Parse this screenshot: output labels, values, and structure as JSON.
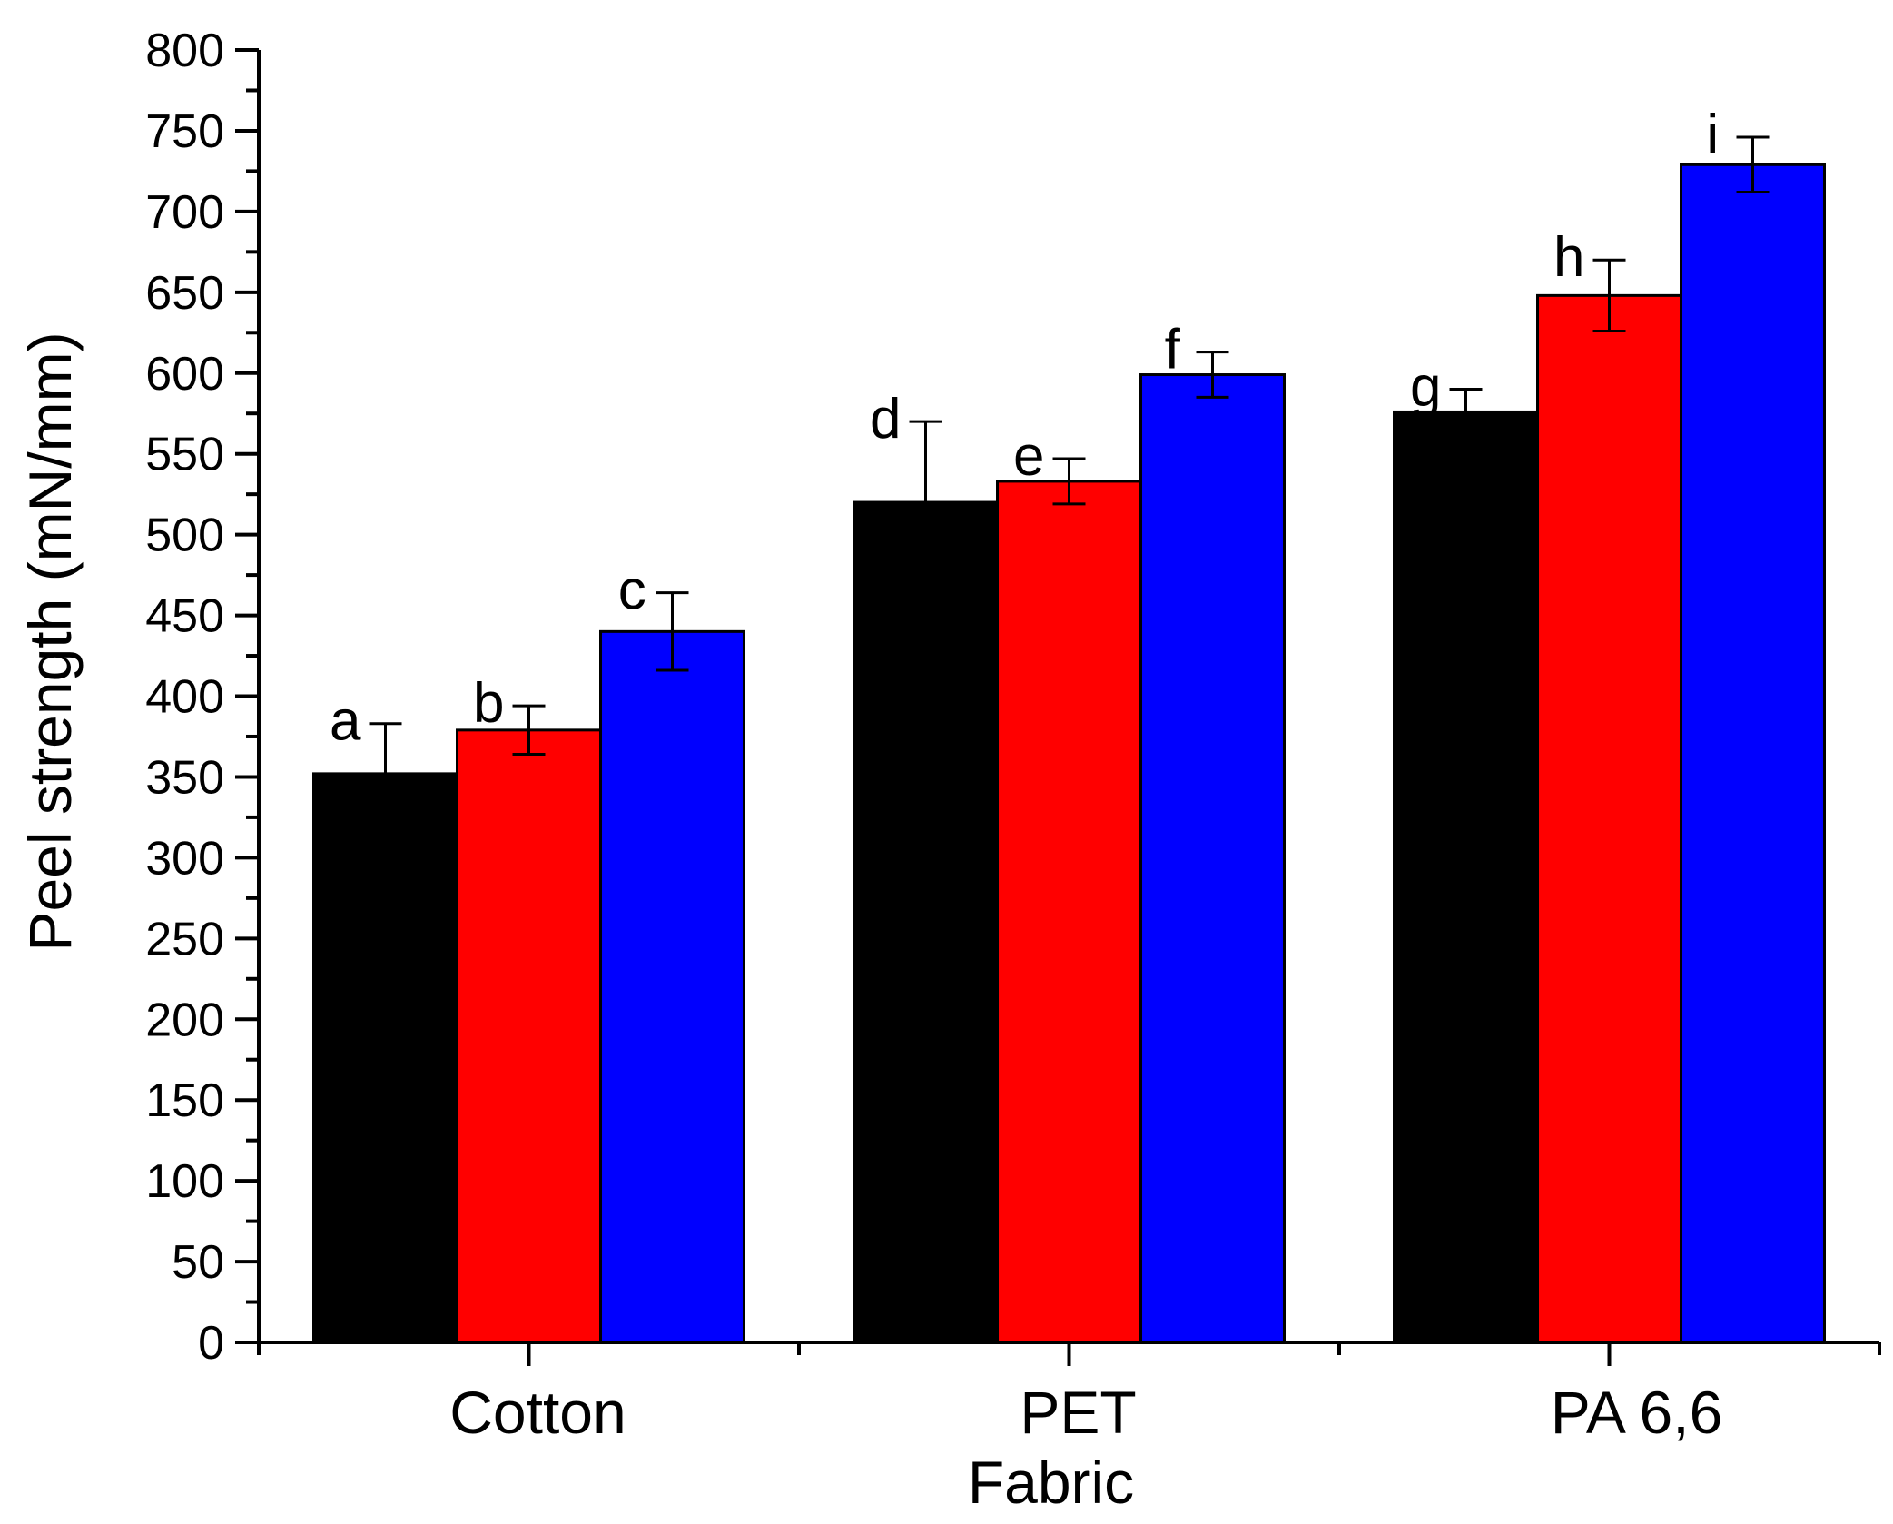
{
  "chart_data": {
    "type": "bar",
    "title": "",
    "xlabel": "Fabric",
    "ylabel": "Peel strength (mN/mm)",
    "ylim": [
      0,
      800
    ],
    "y_major_step": 50,
    "y_minor_step": 25,
    "grid": false,
    "legend": "none",
    "categories": [
      "Cotton",
      "PET",
      "PA 6,6"
    ],
    "series": [
      {
        "color": "#000000",
        "values": [
          352,
          520,
          576
        ],
        "errors": [
          31,
          50,
          14
        ],
        "sig_labels": [
          "a",
          "d",
          "g"
        ]
      },
      {
        "color": "#ff0000",
        "values": [
          379,
          533,
          648
        ],
        "errors": [
          15,
          14,
          22
        ],
        "sig_labels": [
          "b",
          "e",
          "h"
        ]
      },
      {
        "color": "#0000ff",
        "values": [
          440,
          599,
          729
        ],
        "errors": [
          24,
          14,
          17
        ],
        "sig_labels": [
          "c",
          "f",
          "i"
        ]
      }
    ]
  }
}
